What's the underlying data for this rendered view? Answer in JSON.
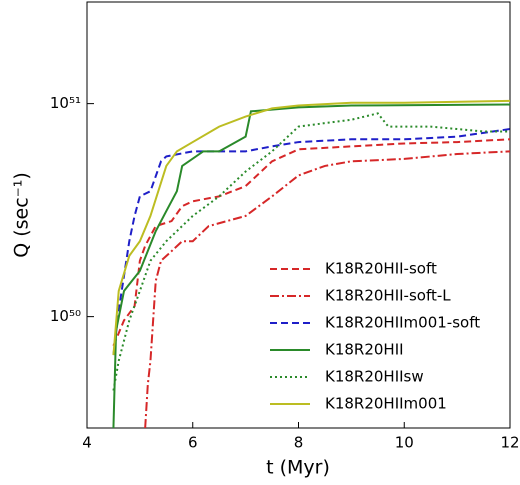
{
  "chart_data": {
    "type": "line",
    "xlabel": "t (Myr)",
    "ylabel": "Q (sec⁻¹)",
    "xlim": [
      4,
      12
    ],
    "xticks": [
      4,
      6,
      8,
      10,
      12
    ],
    "ylim": [
      3e+49,
      3e+51
    ],
    "ylog": true,
    "yticks": [
      {
        "value": 1e+50,
        "label": "10⁵⁰"
      },
      {
        "value": 1e+51,
        "label": "10⁵¹"
      }
    ],
    "legend": "lower right",
    "series": [
      {
        "name": "K18R20HII-soft",
        "color": "#d62728",
        "linestyle": "dashed",
        "x": [
          4.5,
          4.7,
          4.9,
          5.0,
          5.1,
          5.3,
          5.6,
          5.8,
          6.0,
          6.5,
          7.0,
          7.5,
          8.0,
          9.0,
          10.0,
          11.0,
          12.0
        ],
        "values": [
          7.3e+49,
          9.6e+49,
          1.12e+50,
          1.83e+50,
          2.15e+50,
          2.66e+50,
          2.81e+50,
          3.3e+50,
          3.48e+50,
          3.67e+50,
          4.1e+50,
          5.36e+50,
          6.1e+50,
          6.3e+50,
          6.5e+50,
          6.6e+50,
          6.8e+50
        ]
      },
      {
        "name": "K18R20HII-soft-L",
        "color": "#d62728",
        "linestyle": "dashdot",
        "x": [
          5.1,
          5.15,
          5.2,
          5.3,
          5.4,
          5.6,
          5.8,
          6.0,
          6.3,
          7.0,
          7.5,
          8.0,
          8.5,
          9.0,
          10.0,
          11.0,
          12.0
        ],
        "values": [
          3e+49,
          4.8e+49,
          6.2e+49,
          1.47e+50,
          1.83e+50,
          2.03e+50,
          2.26e+50,
          2.26e+50,
          2.66e+50,
          2.97e+50,
          3.67e+50,
          4.6e+50,
          5.1e+50,
          5.36e+50,
          5.5e+50,
          5.8e+50,
          5.97e+50
        ]
      },
      {
        "name": "K18R20HIIm001-soft",
        "color": "#1f1fc8",
        "linestyle": "dashed",
        "x": [
          4.5,
          4.6,
          4.8,
          4.9,
          5.0,
          5.2,
          5.4,
          5.5,
          6.0,
          6.5,
          7.0,
          7.5,
          8.0,
          9.0,
          10.0,
          11.0,
          12.0
        ],
        "values": [
          6.6e+49,
          1.07e+50,
          2.26e+50,
          2.97e+50,
          3.67e+50,
          3.88e+50,
          5.36e+50,
          5.65e+50,
          5.97e+50,
          5.97e+50,
          5.97e+50,
          6.3e+50,
          6.6e+50,
          6.8e+50,
          6.8e+50,
          7e+50,
          7.6e+50
        ]
      },
      {
        "name": "K18R20HII",
        "color": "#2a8a2a",
        "linestyle": "solid",
        "x": [
          4.5,
          4.55,
          4.7,
          5.0,
          5.3,
          5.5,
          5.7,
          5.8,
          6.2,
          6.5,
          7.0,
          7.1,
          8.0,
          9.0,
          12.0
        ],
        "values": [
          3e+49,
          8.6e+49,
          1.32e+50,
          1.64e+50,
          2.52e+50,
          3.13e+50,
          3.88e+50,
          5.1e+50,
          5.97e+50,
          5.97e+50,
          7e+50,
          9.2e+50,
          9.6e+50,
          9.8e+50,
          9.9e+50
        ]
      },
      {
        "name": "K18R20HIIsw",
        "color": "#2a8a2a",
        "linestyle": "dotted",
        "x": [
          4.5,
          4.6,
          4.8,
          5.0,
          5.2,
          5.5,
          6.0,
          6.5,
          7.0,
          7.5,
          8.0,
          8.5,
          9.0,
          9.5,
          9.7,
          10.5,
          11.0,
          11.5,
          12.0
        ],
        "values": [
          4.5e+49,
          6.2e+49,
          9.6e+49,
          1.32e+50,
          1.83e+50,
          2.26e+50,
          2.97e+50,
          3.67e+50,
          4.8e+50,
          5.97e+50,
          7.8e+50,
          8.1e+50,
          8.4e+50,
          9e+50,
          7.8e+50,
          7.8e+50,
          7.6e+50,
          7.4e+50,
          7.4e+50
        ]
      },
      {
        "name": "K18R20HIIm001",
        "color": "#bcbd22",
        "linestyle": "solid",
        "x": [
          4.5,
          4.6,
          4.8,
          5.0,
          5.2,
          5.5,
          5.7,
          6.0,
          6.5,
          7.0,
          7.5,
          8.0,
          9.0,
          10.0,
          12.0
        ],
        "values": [
          6.6e+49,
          1.32e+50,
          1.93e+50,
          2.26e+50,
          2.97e+50,
          5.1e+50,
          5.97e+50,
          6.6e+50,
          7.8e+50,
          8.7e+50,
          9.5e+50,
          9.8e+50,
          1.01e+51,
          1.01e+51,
          1.03e+51
        ]
      }
    ]
  }
}
